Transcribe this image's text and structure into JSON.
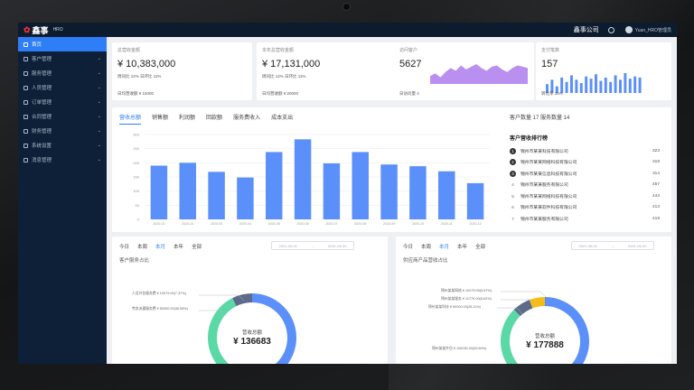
{
  "header": {
    "logo_mark": "✿",
    "logo_text": "鑫事",
    "logo_sub": "HRO",
    "company": "鑫事公司",
    "username": "Yuan_HRO管理员"
  },
  "sidebar": {
    "items": [
      {
        "label": "首页",
        "active": true
      },
      {
        "label": "客户管理"
      },
      {
        "label": "服务管理"
      },
      {
        "label": "人员管理"
      },
      {
        "label": "订单管理"
      },
      {
        "label": "合同管理"
      },
      {
        "label": "财务管理"
      },
      {
        "label": "系统设置"
      },
      {
        "label": "消息管理"
      }
    ]
  },
  "stats": [
    {
      "title": "总营收金额",
      "value": "¥ 10,383,000",
      "sub": "周同比 12%   日环比 11%",
      "foot": "日均营收额 ¥ 15000"
    },
    {
      "title": "本年总营收金额",
      "value": "¥ 17,131,000",
      "sub": "周同比 12%   日环比 11%",
      "foot": "日均营收额 ¥ 20000"
    },
    {
      "title": "访问客户",
      "value": "5627",
      "foot": "日访问量 4"
    },
    {
      "title": "支付笔数",
      "value": "157",
      "foot": "转化率 35%"
    }
  ],
  "main_chart": {
    "tabs": [
      "营收总额",
      "销售额",
      "利润额",
      "回款额",
      "服务费收入",
      "成本支出"
    ],
    "active_tab": 0,
    "right_head": "客户数量 17    服务数量 14",
    "rank_title": "客户营收排行榜",
    "rank": [
      {
        "no": "1",
        "name": "锦州市某某科技有限公司",
        "score": "323"
      },
      {
        "no": "2",
        "name": "锦州市某某网络科技有限公司",
        "score": "318"
      },
      {
        "no": "3",
        "name": "锦州市某某信息科技有限公司",
        "score": "314"
      },
      {
        "no": "4",
        "name": "锦州市某某服务有限公司",
        "score": "457"
      },
      {
        "no": "5",
        "name": "锦州市某某网络科技有限公司",
        "score": "444"
      },
      {
        "no": "6",
        "name": "锦州市某某软件科技有限公司",
        "score": "413"
      },
      {
        "no": "7",
        "name": "锦州市某某服务有限公司",
        "score": "419"
      }
    ]
  },
  "chart_data": {
    "type": "bar",
    "categories": [
      "2020-01",
      "2020-02",
      "2020-03",
      "2020-04",
      "2020-05",
      "2020-06",
      "2020-07",
      "2020-08",
      "2020-09",
      "2020-10",
      "2020-11",
      "2020-12"
    ],
    "values": [
      190,
      200,
      168,
      148,
      238,
      283,
      198,
      238,
      194,
      188,
      170,
      128
    ],
    "ylim": [
      0,
      300
    ],
    "yticks": [
      "0",
      "50",
      "100",
      "150",
      "200",
      "250",
      "300"
    ],
    "bar_color": "#5b8ff9",
    "grid": true
  },
  "donut_left": {
    "tabs": [
      "今日",
      "本周",
      "本月",
      "本年",
      "全部"
    ],
    "active_tab": 2,
    "range_start": "2021-06-01",
    "range_end": "2021-06-30",
    "title": "客户服务占比",
    "center_label": "营收总额",
    "center_value": "¥ 136683",
    "legend": [
      {
        "label": "人员外包服务费 ¥ 10079.00(7.37%)",
        "color": "#5c6b8a"
      },
      {
        "label": "劳务派遣服务费 ¥ 50000.00(36.58%)",
        "color": "#5ad8a6"
      }
    ],
    "slices": [
      {
        "value": 56.05,
        "color": "#5b8ff9"
      },
      {
        "value": 36.58,
        "color": "#5ad8a6"
      },
      {
        "value": 7.37,
        "color": "#5c6b8a"
      }
    ]
  },
  "donut_right": {
    "tabs": [
      "今日",
      "本周",
      "本月",
      "本年",
      "全部"
    ],
    "active_tab": 2,
    "range_start": "2021-06-01",
    "range_end": "2021-06-30",
    "title": "供应商产品营收占比",
    "center_label": "营收总额",
    "center_value": "¥ 177888",
    "legend": [
      {
        "label": "锦州某某网络 ¥ 10079.00(5.67%)",
        "color": "#f6bd16"
      },
      {
        "label": "锦州某某服务 ¥ 11779.00(6.62%)",
        "color": "#5c6b8a"
      },
      {
        "label": "锦州某某科技 ¥ 50000.00(28.11%)",
        "color": "#5ad8a6"
      },
      {
        "label": "锦州某某外包 ¥ 106030.00(59.60%)",
        "color": "#5b8ff9"
      }
    ],
    "slices": [
      {
        "value": 59.6,
        "color": "#5b8ff9"
      },
      {
        "value": 28.11,
        "color": "#5ad8a6"
      },
      {
        "value": 6.62,
        "color": "#5c6b8a"
      },
      {
        "value": 5.67,
        "color": "#f6bd16"
      }
    ]
  },
  "sparks": {
    "area_values": [
      6,
      8,
      5,
      9,
      12,
      10,
      14,
      11,
      13,
      15,
      12,
      10,
      13,
      14,
      11,
      9,
      12,
      14,
      13,
      12
    ],
    "bar_values": [
      8,
      12,
      6,
      14,
      10,
      16,
      12,
      9,
      15,
      13,
      17,
      11,
      14,
      10,
      16,
      12,
      18,
      13,
      15,
      14
    ]
  }
}
